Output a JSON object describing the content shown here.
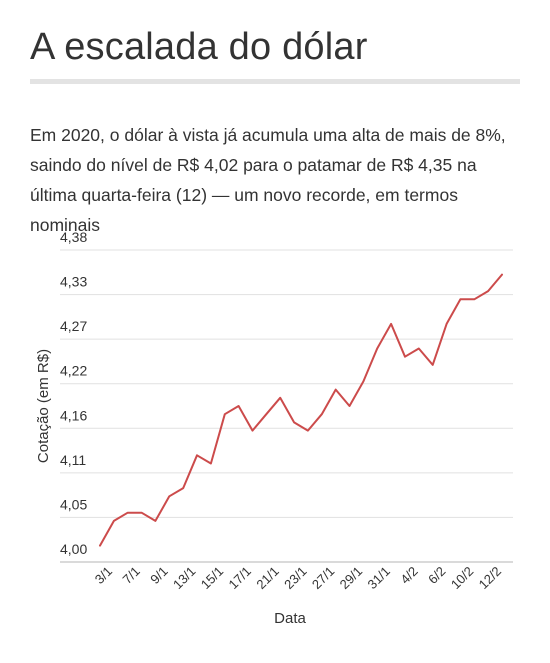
{
  "title": "A escalada do dólar",
  "subtitle": "Em 2020, o dólar à vista já acumula uma alta de mais de 8%, saindo do nível de R$ 4,02 para o patamar de R$ 4,35 na última quarta-feira (12) — um novo recorde, em termos nominais",
  "chart_data": {
    "type": "line",
    "xlabel": "Data",
    "ylabel": "Cotação (em R$)",
    "ylim": [
      4.0,
      4.38
    ],
    "yticks": [
      "4,00",
      "4,05",
      "4,11",
      "4,16",
      "4,22",
      "4,27",
      "4,33",
      "4,38"
    ],
    "xticks": [
      "3/1",
      "7/1",
      "9/1",
      "13/1",
      "15/1",
      "17/1",
      "21/1",
      "23/1",
      "27/1",
      "29/1",
      "31/1",
      "4/2",
      "6/2",
      "10/2",
      "12/2"
    ],
    "grid": true,
    "line_color": "#cc4b4b",
    "x": [
      "2/1",
      "3/1",
      "6/1",
      "7/1",
      "8/1",
      "9/1",
      "10/1",
      "13/1",
      "14/1",
      "15/1",
      "16/1",
      "17/1",
      "20/1",
      "21/1",
      "22/1",
      "23/1",
      "24/1",
      "27/1",
      "28/1",
      "29/1",
      "30/1",
      "31/1",
      "3/2",
      "4/2",
      "5/2",
      "6/2",
      "7/2",
      "10/2",
      "11/2",
      "12/2"
    ],
    "values": [
      4.02,
      4.05,
      4.06,
      4.06,
      4.05,
      4.08,
      4.09,
      4.13,
      4.12,
      4.18,
      4.19,
      4.16,
      4.18,
      4.2,
      4.17,
      4.16,
      4.18,
      4.21,
      4.19,
      4.22,
      4.26,
      4.29,
      4.25,
      4.26,
      4.24,
      4.29,
      4.32,
      4.32,
      4.33,
      4.35
    ]
  }
}
